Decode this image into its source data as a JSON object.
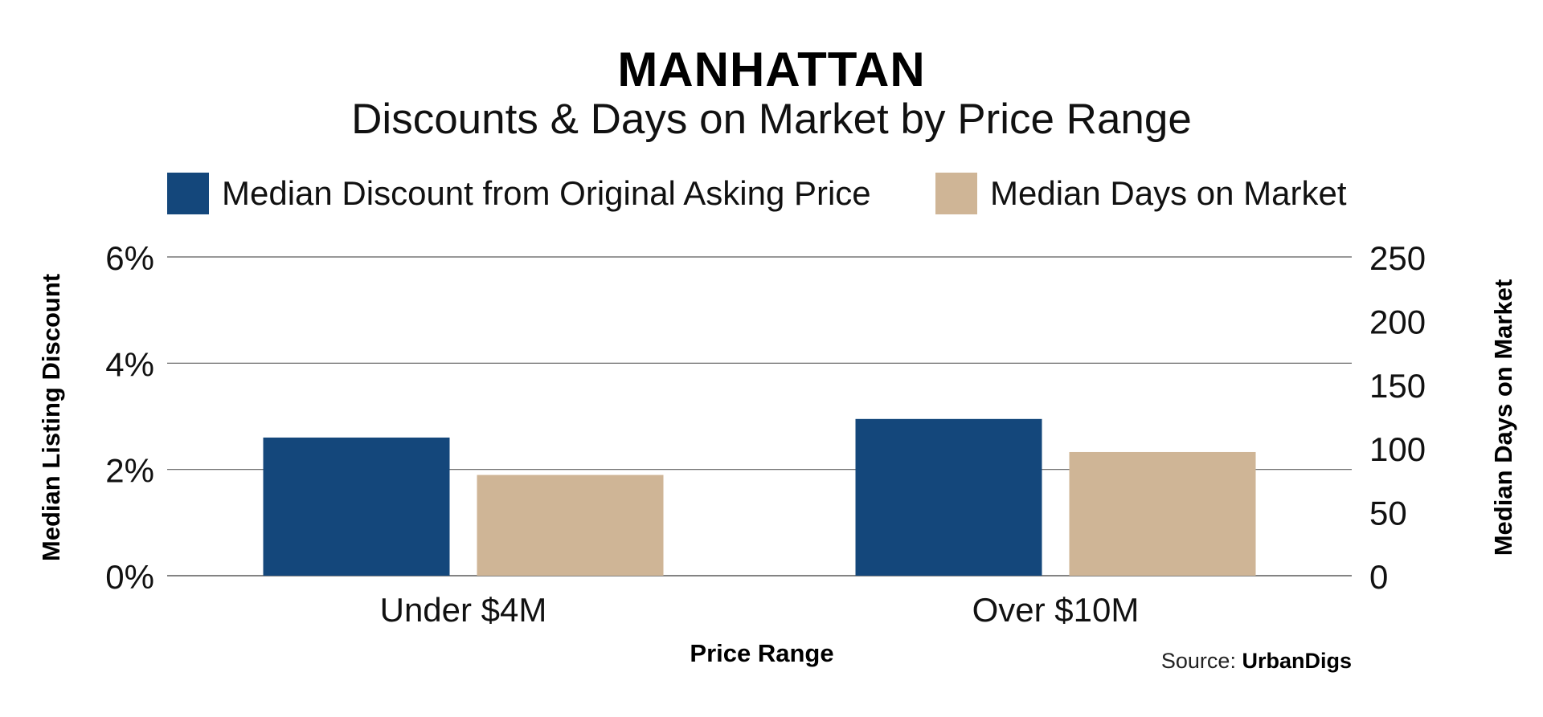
{
  "chart_data": {
    "type": "bar",
    "title": "MANHATTAN",
    "subtitle": "Discounts & Days on Market by Price Range",
    "categories": [
      "Under $4M",
      "Over $10M"
    ],
    "xlabel": "Price Range",
    "ylabel": "Median Listing Discount",
    "y2label": "Median Days on Market",
    "series": [
      {
        "name": "Median Discount from Original Asking Price",
        "axis": "left",
        "unit": "%",
        "values": [
          2.6,
          2.95
        ],
        "color": "#14477b"
      },
      {
        "name": "Median Days on Market",
        "axis": "right",
        "unit": "days",
        "values": [
          79,
          97
        ],
        "color": "#cfb596"
      }
    ],
    "ylim": [
      0,
      6
    ],
    "yticks": [
      "0%",
      "2%",
      "4%",
      "6%"
    ],
    "y_tick_values": [
      0,
      2,
      4,
      6
    ],
    "y2lim": [
      0,
      250
    ],
    "y2ticks": [
      "0",
      "50",
      "100",
      "150",
      "200",
      "250"
    ],
    "y2_tick_values": [
      0,
      50,
      100,
      150,
      200,
      250
    ],
    "grid": true,
    "legend_position": "top",
    "source_prefix": "Source:",
    "source_name": "UrbanDigs"
  },
  "colors": {
    "gridline": "#5a5a5a",
    "text": "#111111"
  }
}
